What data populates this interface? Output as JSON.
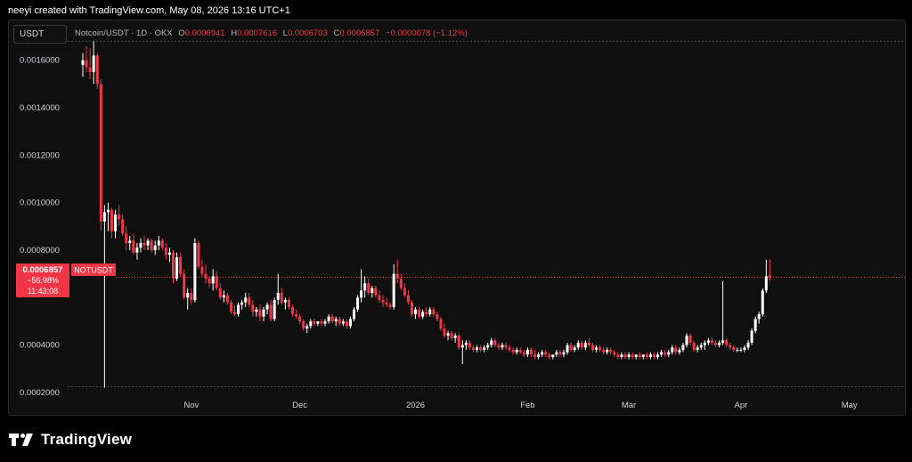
{
  "header": {
    "credit": "neeyi created with TradingView.com, May 08, 2026 13:16 UTC+1"
  },
  "toolbar": {
    "unit": "USDT"
  },
  "legend": {
    "symbol": "Notcoin/USDT · 1D · OKX",
    "open_key": "O",
    "open": "0.0006941",
    "high_key": "H",
    "high": "0.0007616",
    "low_key": "L",
    "low": "0.0006703",
    "close_key": "C",
    "close": "0.0006857",
    "change": "−0.0000078 (−1.12%)"
  },
  "price_badge": {
    "price": "0.0006857",
    "change_pct": "−56.98%",
    "countdown": "11:43:08",
    "ticker": "NOTUSDT"
  },
  "footer": {
    "brand": "TradingView"
  },
  "colors": {
    "up": "#ffffff",
    "down": "#f23645",
    "background": "#0f0f0f",
    "text": "#d1d4dc"
  },
  "chart_data": {
    "type": "candlestick",
    "title": "Notcoin/USDT · 1D · OKX",
    "xlabel": "",
    "ylabel": "",
    "ylim": [
      0.0002,
      0.0017
    ],
    "y_ticks": [
      "0.0016000",
      "0.0014000",
      "0.0012000",
      "0.0010000",
      "0.0008000",
      "0.0004000",
      "0.0002000"
    ],
    "x_ticks": [
      "Nov",
      "Dec",
      "2026",
      "Feb",
      "Mar",
      "Apr",
      "May"
    ],
    "x_tick_days": [
      30,
      60,
      92,
      123,
      151,
      182,
      212
    ],
    "first_day": 0,
    "reference_levels": {
      "all_time_high": 0.00168,
      "low": 0.000225,
      "last": 0.0006857
    },
    "candles": [
      [
        0.00158,
        0.00163,
        0.00153,
        0.0016
      ],
      [
        0.0016,
        0.00166,
        0.00155,
        0.00157
      ],
      [
        0.00157,
        0.00165,
        0.00152,
        0.00155
      ],
      [
        0.00155,
        0.00168,
        0.0015,
        0.00162
      ],
      [
        0.00162,
        0.00163,
        0.00148,
        0.0015
      ],
      [
        0.0015,
        0.00152,
        0.00088,
        0.00092
      ],
      [
        0.00092,
        0.00099,
        0.00022,
        0.00096
      ],
      [
        0.00096,
        0.001,
        0.00088,
        0.00097
      ],
      [
        0.00097,
        0.00098,
        0.00085,
        0.00088
      ],
      [
        0.00088,
        0.00097,
        0.00085,
        0.00095
      ],
      [
        0.00095,
        0.00099,
        0.0009,
        0.00093
      ],
      [
        0.00093,
        0.00095,
        0.00086,
        0.00087
      ],
      [
        0.00087,
        0.0009,
        0.0008,
        0.00083
      ],
      [
        0.00083,
        0.00086,
        0.0008,
        0.00084
      ],
      [
        0.00084,
        0.00087,
        0.00078,
        0.00079
      ],
      [
        0.00079,
        0.00083,
        0.00076,
        0.00081
      ],
      [
        0.00081,
        0.00085,
        0.00079,
        0.00083
      ],
      [
        0.00083,
        0.00086,
        0.0008,
        0.00082
      ],
      [
        0.00082,
        0.00085,
        0.0008,
        0.00084
      ],
      [
        0.00084,
        0.00085,
        0.00079,
        0.0008
      ],
      [
        0.0008,
        0.00084,
        0.00078,
        0.00082
      ],
      [
        0.00082,
        0.00086,
        0.0008,
        0.00084
      ],
      [
        0.00084,
        0.00085,
        0.0008,
        0.00081
      ],
      [
        0.00081,
        0.00083,
        0.00076,
        0.00078
      ],
      [
        0.00078,
        0.00081,
        0.00075,
        0.00079
      ],
      [
        0.00079,
        0.0008,
        0.00066,
        0.00068
      ],
      [
        0.00068,
        0.00079,
        0.00067,
        0.00077
      ],
      [
        0.00077,
        0.00079,
        0.00069,
        0.0007
      ],
      [
        0.0007,
        0.00072,
        0.00059,
        0.0006
      ],
      [
        0.0006,
        0.00064,
        0.00055,
        0.00062
      ],
      [
        0.00062,
        0.00064,
        0.00057,
        0.00059
      ],
      [
        0.00059,
        0.00085,
        0.00058,
        0.00083
      ],
      [
        0.00083,
        0.00084,
        0.00072,
        0.00073
      ],
      [
        0.00073,
        0.00076,
        0.00069,
        0.0007
      ],
      [
        0.0007,
        0.00074,
        0.00066,
        0.00068
      ],
      [
        0.00068,
        0.00069,
        0.00064,
        0.00066
      ],
      [
        0.00066,
        0.00072,
        0.00063,
        0.00069
      ],
      [
        0.00069,
        0.00071,
        0.00063,
        0.00064
      ],
      [
        0.00064,
        0.00066,
        0.00059,
        0.0006
      ],
      [
        0.0006,
        0.00063,
        0.00058,
        0.00061
      ],
      [
        0.00061,
        0.00062,
        0.00057,
        0.00058
      ],
      [
        0.00058,
        0.00059,
        0.00053,
        0.00054
      ],
      [
        0.00054,
        0.00057,
        0.00052,
        0.00053
      ],
      [
        0.00053,
        0.00058,
        0.00052,
        0.00057
      ],
      [
        0.00057,
        0.00059,
        0.00055,
        0.00058
      ],
      [
        0.00058,
        0.00062,
        0.00056,
        0.0006
      ],
      [
        0.0006,
        0.00062,
        0.00056,
        0.00057
      ],
      [
        0.00057,
        0.00059,
        0.00052,
        0.00054
      ],
      [
        0.00054,
        0.00056,
        0.00052,
        0.00055
      ],
      [
        0.00055,
        0.00057,
        0.0005,
        0.00052
      ],
      [
        0.00052,
        0.00056,
        0.0005,
        0.00055
      ],
      [
        0.00055,
        0.00058,
        0.00053,
        0.00057
      ],
      [
        0.00057,
        0.00059,
        0.0005,
        0.00051
      ],
      [
        0.00051,
        0.0006,
        0.0005,
        0.00059
      ],
      [
        0.00059,
        0.0007,
        0.00057,
        0.00062
      ],
      [
        0.00062,
        0.00064,
        0.00057,
        0.00058
      ],
      [
        0.00058,
        0.0006,
        0.00055,
        0.00059
      ],
      [
        0.00059,
        0.0006,
        0.00055,
        0.00056
      ],
      [
        0.00056,
        0.00057,
        0.00052,
        0.00053
      ],
      [
        0.00053,
        0.00055,
        0.00051,
        0.00052
      ],
      [
        0.00052,
        0.00053,
        0.00049,
        0.0005
      ],
      [
        0.0005,
        0.00051,
        0.00046,
        0.00047
      ],
      [
        0.00047,
        0.00049,
        0.00045,
        0.00048
      ],
      [
        0.00048,
        0.00051,
        0.00047,
        0.0005
      ],
      [
        0.0005,
        0.00051,
        0.00048,
        0.00049
      ],
      [
        0.00049,
        0.0005,
        0.00048,
        0.0005
      ],
      [
        0.0005,
        0.00051,
        0.00048,
        0.00049
      ],
      [
        0.00049,
        0.00051,
        0.00048,
        0.0005
      ],
      [
        0.0005,
        0.00053,
        0.00049,
        0.00052
      ],
      [
        0.00052,
        0.00053,
        0.00049,
        0.0005
      ],
      [
        0.0005,
        0.00052,
        0.00048,
        0.00051
      ],
      [
        0.00051,
        0.00052,
        0.00048,
        0.00049
      ],
      [
        0.00049,
        0.00051,
        0.00048,
        0.0005
      ],
      [
        0.0005,
        0.00051,
        0.00047,
        0.00048
      ],
      [
        0.00048,
        0.00052,
        0.00047,
        0.00051
      ],
      [
        0.00051,
        0.00056,
        0.0005,
        0.00055
      ],
      [
        0.00055,
        0.00061,
        0.00054,
        0.0006
      ],
      [
        0.0006,
        0.00072,
        0.00058,
        0.00063
      ],
      [
        0.00063,
        0.00069,
        0.0006,
        0.00066
      ],
      [
        0.00066,
        0.00068,
        0.00061,
        0.00062
      ],
      [
        0.00062,
        0.00065,
        0.0006,
        0.00064
      ],
      [
        0.00064,
        0.00065,
        0.0006,
        0.00061
      ],
      [
        0.00061,
        0.00063,
        0.00058,
        0.00059
      ],
      [
        0.00059,
        0.00061,
        0.00056,
        0.00058
      ],
      [
        0.00058,
        0.0006,
        0.00056,
        0.00057
      ],
      [
        0.00057,
        0.00058,
        0.00055,
        0.00056
      ],
      [
        0.00056,
        0.00074,
        0.00055,
        0.0007
      ],
      [
        0.0007,
        0.00076,
        0.00066,
        0.00068
      ],
      [
        0.00068,
        0.0007,
        0.00063,
        0.00064
      ],
      [
        0.00064,
        0.00066,
        0.0006,
        0.00061
      ],
      [
        0.00061,
        0.00063,
        0.00057,
        0.00058
      ],
      [
        0.00058,
        0.00059,
        0.00052,
        0.00053
      ],
      [
        0.00053,
        0.00056,
        0.00051,
        0.00055
      ],
      [
        0.00055,
        0.00056,
        0.00051,
        0.00052
      ],
      [
        0.00052,
        0.00055,
        0.00051,
        0.00054
      ],
      [
        0.00054,
        0.00056,
        0.00052,
        0.00053
      ],
      [
        0.00053,
        0.00056,
        0.00052,
        0.00055
      ],
      [
        0.00055,
        0.00056,
        0.00052,
        0.00053
      ],
      [
        0.00053,
        0.00054,
        0.0005,
        0.00051
      ],
      [
        0.00051,
        0.00052,
        0.00046,
        0.00047
      ],
      [
        0.00047,
        0.00049,
        0.00043,
        0.00044
      ],
      [
        0.00044,
        0.00046,
        0.00042,
        0.00045
      ],
      [
        0.00045,
        0.00046,
        0.00042,
        0.00043
      ],
      [
        0.00043,
        0.00045,
        0.00041,
        0.00044
      ],
      [
        0.00044,
        0.00045,
        0.00038,
        0.00039
      ],
      [
        0.00039,
        0.00042,
        0.00032,
        0.0004
      ],
      [
        0.0004,
        0.00042,
        0.00038,
        0.00041
      ],
      [
        0.00041,
        0.00042,
        0.00038,
        0.00039
      ],
      [
        0.00039,
        0.0004,
        0.00037,
        0.00038
      ],
      [
        0.00038,
        0.0004,
        0.00037,
        0.00039
      ],
      [
        0.00039,
        0.0004,
        0.00037,
        0.00038
      ],
      [
        0.00038,
        0.0004,
        0.00037,
        0.00039
      ],
      [
        0.00039,
        0.00041,
        0.00038,
        0.0004
      ],
      [
        0.0004,
        0.00043,
        0.00039,
        0.00042
      ],
      [
        0.00042,
        0.00043,
        0.00039,
        0.0004
      ],
      [
        0.0004,
        0.00041,
        0.00038,
        0.00039
      ],
      [
        0.00039,
        0.00041,
        0.00038,
        0.0004
      ],
      [
        0.0004,
        0.00041,
        0.00038,
        0.00039
      ],
      [
        0.00039,
        0.0004,
        0.00037,
        0.00038
      ],
      [
        0.00038,
        0.00039,
        0.00036,
        0.00037
      ],
      [
        0.00037,
        0.00039,
        0.00036,
        0.00038
      ],
      [
        0.00038,
        0.00039,
        0.00036,
        0.00037
      ],
      [
        0.00037,
        0.00038,
        0.00035,
        0.00036
      ],
      [
        0.00036,
        0.00039,
        0.00035,
        0.00038
      ],
      [
        0.00038,
        0.00039,
        0.00035,
        0.00036
      ],
      [
        0.00036,
        0.00038,
        0.00034,
        0.00035
      ],
      [
        0.00035,
        0.00037,
        0.00034,
        0.00036
      ],
      [
        0.00036,
        0.00038,
        0.00035,
        0.00037
      ],
      [
        0.00037,
        0.00038,
        0.00035,
        0.00036
      ],
      [
        0.00036,
        0.00037,
        0.00034,
        0.00035
      ],
      [
        0.00035,
        0.00036,
        0.00034,
        0.00036
      ],
      [
        0.00036,
        0.00038,
        0.00035,
        0.00037
      ],
      [
        0.00037,
        0.00038,
        0.00035,
        0.00036
      ],
      [
        0.00036,
        0.00038,
        0.00035,
        0.00037
      ],
      [
        0.00037,
        0.00041,
        0.00036,
        0.0004
      ],
      [
        0.0004,
        0.00041,
        0.00037,
        0.00038
      ],
      [
        0.00038,
        0.0004,
        0.00037,
        0.00039
      ],
      [
        0.00039,
        0.00042,
        0.00038,
        0.00041
      ],
      [
        0.00041,
        0.00042,
        0.00038,
        0.00039
      ],
      [
        0.00039,
        0.00042,
        0.00038,
        0.00041
      ],
      [
        0.00041,
        0.00043,
        0.00039,
        0.0004
      ],
      [
        0.0004,
        0.00041,
        0.00037,
        0.00038
      ],
      [
        0.00038,
        0.0004,
        0.00037,
        0.00039
      ],
      [
        0.00039,
        0.0004,
        0.00037,
        0.00038
      ],
      [
        0.00038,
        0.00039,
        0.00036,
        0.00037
      ],
      [
        0.00037,
        0.00039,
        0.00036,
        0.00038
      ],
      [
        0.00038,
        0.00039,
        0.00036,
        0.00037
      ],
      [
        0.00037,
        0.00038,
        0.00035,
        0.00036
      ],
      [
        0.00036,
        0.00037,
        0.00034,
        0.00035
      ],
      [
        0.00035,
        0.00037,
        0.00034,
        0.00036
      ],
      [
        0.00036,
        0.00037,
        0.00034,
        0.00035
      ],
      [
        0.00035,
        0.00037,
        0.00034,
        0.00036
      ],
      [
        0.00036,
        0.00037,
        0.00034,
        0.00035
      ],
      [
        0.00035,
        0.00036,
        0.00034,
        0.00036
      ],
      [
        0.00036,
        0.00037,
        0.00034,
        0.00035
      ],
      [
        0.00035,
        0.00036,
        0.00034,
        0.00036
      ],
      [
        0.00036,
        0.00037,
        0.00034,
        0.00035
      ],
      [
        0.00035,
        0.00037,
        0.00034,
        0.00036
      ],
      [
        0.00036,
        0.00037,
        0.00034,
        0.00035
      ],
      [
        0.00035,
        0.00037,
        0.00034,
        0.00036
      ],
      [
        0.00036,
        0.00038,
        0.00035,
        0.00037
      ],
      [
        0.00037,
        0.00038,
        0.00035,
        0.00036
      ],
      [
        0.00036,
        0.00038,
        0.00035,
        0.00037
      ],
      [
        0.00037,
        0.0004,
        0.00036,
        0.00039
      ],
      [
        0.00039,
        0.0004,
        0.00036,
        0.00037
      ],
      [
        0.00037,
        0.00039,
        0.00036,
        0.00038
      ],
      [
        0.00038,
        0.00041,
        0.00037,
        0.0004
      ],
      [
        0.0004,
        0.00045,
        0.00039,
        0.00044
      ],
      [
        0.00044,
        0.00045,
        0.0004,
        0.00041
      ],
      [
        0.00041,
        0.00042,
        0.00037,
        0.00038
      ],
      [
        0.00038,
        0.0004,
        0.00037,
        0.00039
      ],
      [
        0.00039,
        0.00041,
        0.00038,
        0.0004
      ],
      [
        0.0004,
        0.00042,
        0.00038,
        0.00041
      ],
      [
        0.00041,
        0.00043,
        0.0004,
        0.00042
      ],
      [
        0.00042,
        0.00043,
        0.0004,
        0.00041
      ],
      [
        0.00041,
        0.00042,
        0.00039,
        0.0004
      ],
      [
        0.0004,
        0.00042,
        0.00039,
        0.00041
      ],
      [
        0.00041,
        0.00067,
        0.0004,
        0.00042
      ],
      [
        0.00042,
        0.00043,
        0.00039,
        0.0004
      ],
      [
        0.0004,
        0.00041,
        0.00038,
        0.00039
      ],
      [
        0.00039,
        0.0004,
        0.00037,
        0.00038
      ],
      [
        0.00038,
        0.00039,
        0.00037,
        0.00038
      ],
      [
        0.00038,
        0.00039,
        0.00037,
        0.00038
      ],
      [
        0.00038,
        0.0004,
        0.00037,
        0.00039
      ],
      [
        0.00039,
        0.00042,
        0.00038,
        0.00041
      ],
      [
        0.00041,
        0.00047,
        0.0004,
        0.00046
      ],
      [
        0.00046,
        0.00052,
        0.00045,
        0.00051
      ],
      [
        0.00051,
        0.00054,
        0.00049,
        0.00053
      ],
      [
        0.00053,
        0.00064,
        0.00052,
        0.00063
      ],
      [
        0.00063,
        0.00076,
        0.00062,
        0.00069
      ],
      [
        0.0006941,
        0.0007616,
        0.0006703,
        0.0006857
      ]
    ]
  }
}
